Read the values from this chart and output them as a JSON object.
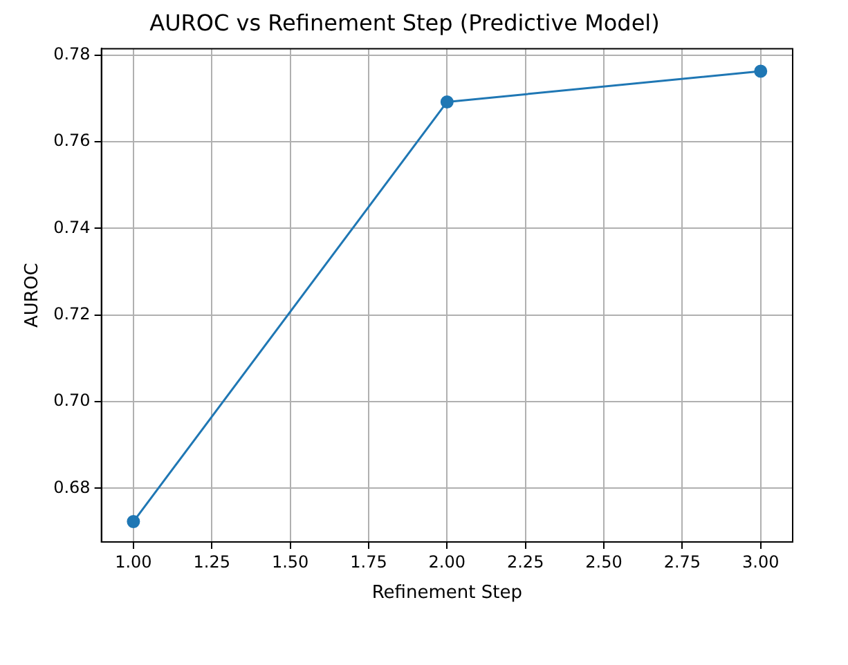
{
  "chart_data": {
    "type": "line",
    "title": "AUROC vs Refinement Step (Predictive Model)",
    "xlabel": "Refinement Step",
    "ylabel": "AUROC",
    "x": [
      1,
      2,
      3
    ],
    "series": [
      {
        "color": "#1f77b4",
        "values": [
          0.6723,
          0.7692,
          0.7763
        ]
      }
    ],
    "xlim": [
      0.898,
      3.102
    ],
    "xticks": [
      {
        "value": 1,
        "label": "1.00"
      },
      {
        "value": 1.25,
        "label": "1.25"
      },
      {
        "value": 1.5,
        "label": "1.50"
      },
      {
        "value": 1.75,
        "label": "1.75"
      },
      {
        "value": 2,
        "label": "2.00"
      },
      {
        "value": 2.25,
        "label": "2.25"
      },
      {
        "value": 2.5,
        "label": "2.50"
      },
      {
        "value": 2.75,
        "label": "2.75"
      },
      {
        "value": 3,
        "label": "3.00"
      }
    ],
    "ylim": [
      0.6676,
      0.7815
    ],
    "yticks": [
      {
        "value": 0.68,
        "label": "0.68"
      },
      {
        "value": 0.7,
        "label": "0.70"
      },
      {
        "value": 0.72,
        "label": "0.72"
      },
      {
        "value": 0.74,
        "label": "0.74"
      },
      {
        "value": 0.76,
        "label": "0.76"
      },
      {
        "value": 0.78,
        "label": "0.78"
      }
    ],
    "grid": true,
    "marker": "circle",
    "line_style": "solid",
    "legend": false
  }
}
